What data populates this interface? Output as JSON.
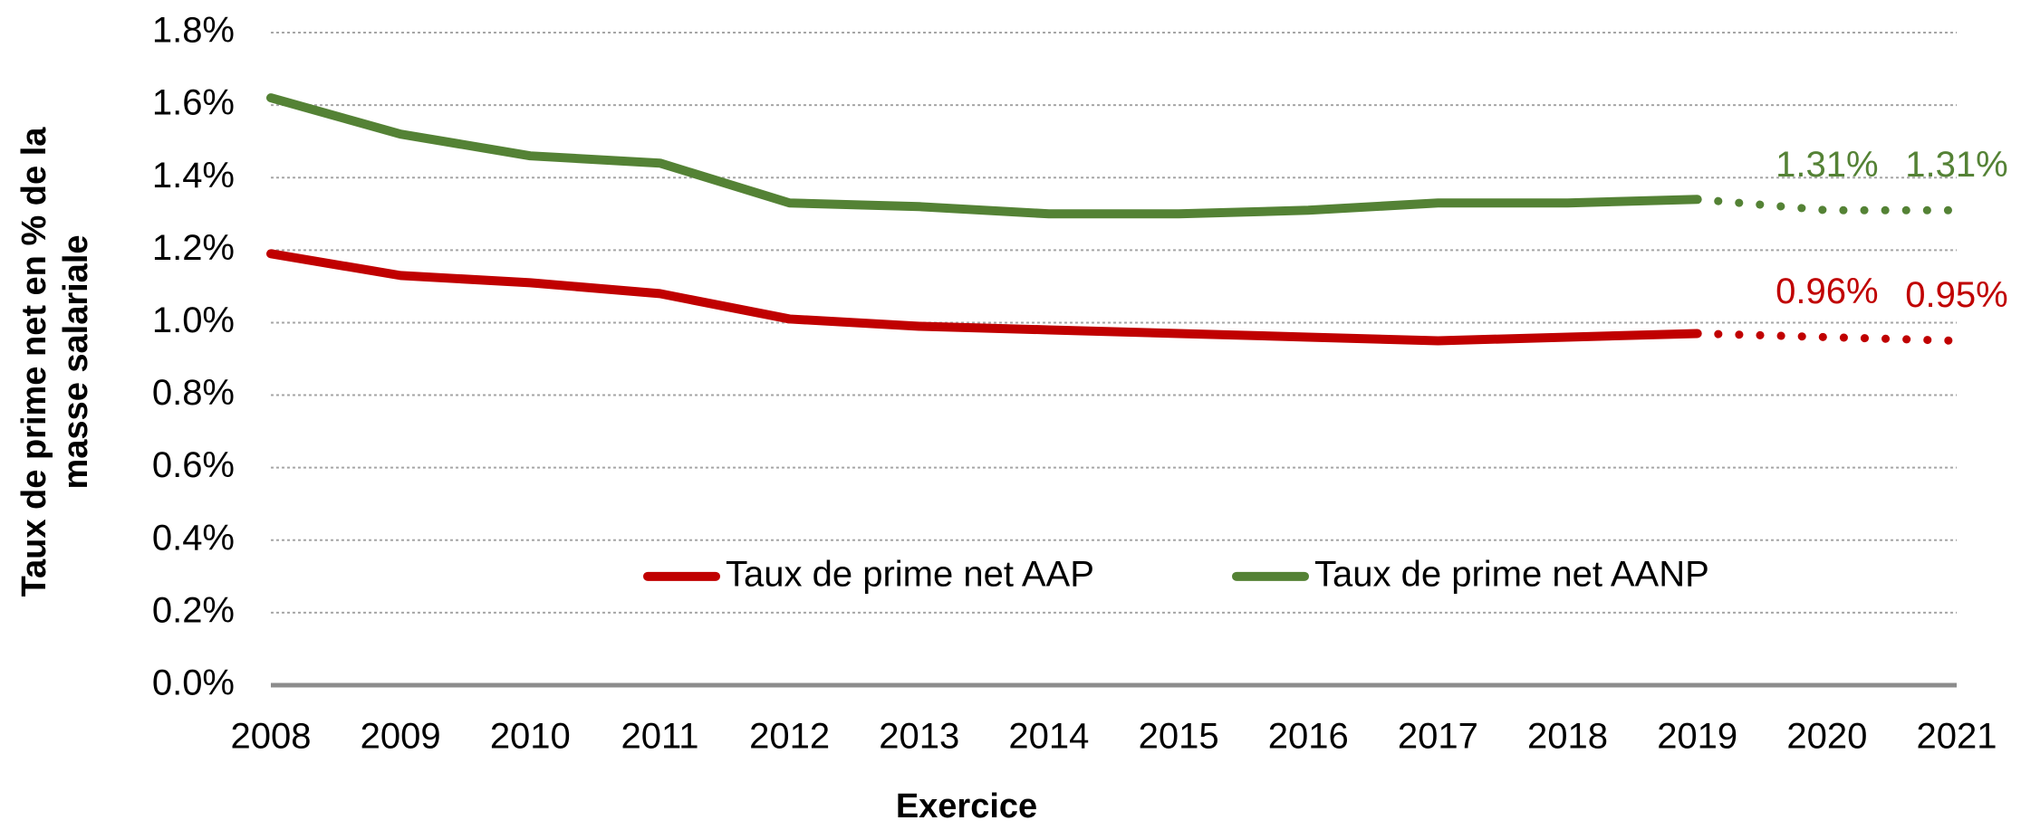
{
  "chart_data": {
    "type": "line",
    "xlabel": "Exercice",
    "ylabel": [
      "Taux de prime net en % de la",
      "masse salariale"
    ],
    "categories": [
      "2008",
      "2009",
      "2010",
      "2011",
      "2012",
      "2013",
      "2014",
      "2015",
      "2016",
      "2017",
      "2018",
      "2019",
      "2020",
      "2021"
    ],
    "forecast_from": "2019",
    "series": [
      {
        "name": "Taux de prime net AAP",
        "color": "#c00000",
        "values": [
          1.19,
          1.13,
          1.11,
          1.08,
          1.01,
          0.99,
          0.98,
          0.97,
          0.96,
          0.95,
          0.96,
          0.97,
          0.96,
          0.95
        ],
        "value_labels": [
          null,
          null,
          null,
          null,
          null,
          null,
          null,
          null,
          null,
          null,
          null,
          null,
          "0.96%",
          "0.95%"
        ]
      },
      {
        "name": "Taux de prime net AANP",
        "color": "#548235",
        "values": [
          1.62,
          1.52,
          1.46,
          1.44,
          1.33,
          1.32,
          1.3,
          1.3,
          1.31,
          1.33,
          1.33,
          1.34,
          1.31,
          1.31
        ],
        "value_labels": [
          null,
          null,
          null,
          null,
          null,
          null,
          null,
          null,
          null,
          null,
          null,
          null,
          "1.31%",
          "1.31%"
        ]
      }
    ],
    "ylim": [
      0,
      1.8
    ],
    "yticks": [
      {
        "value": 0,
        "label": "0.0%"
      },
      {
        "value": 0.2,
        "label": "0.2%"
      },
      {
        "value": 0.4,
        "label": "0.4%"
      },
      {
        "value": 0.6,
        "label": "0.6%"
      },
      {
        "value": 0.8,
        "label": "0.8%"
      },
      {
        "value": 1.0,
        "label": "1.0%"
      },
      {
        "value": 1.2,
        "label": "1.2%"
      },
      {
        "value": 1.4,
        "label": "1.4%"
      },
      {
        "value": 1.6,
        "label": "1.6%"
      },
      {
        "value": 1.8,
        "label": "1.8%"
      }
    ],
    "grid": true,
    "legend": "center"
  }
}
